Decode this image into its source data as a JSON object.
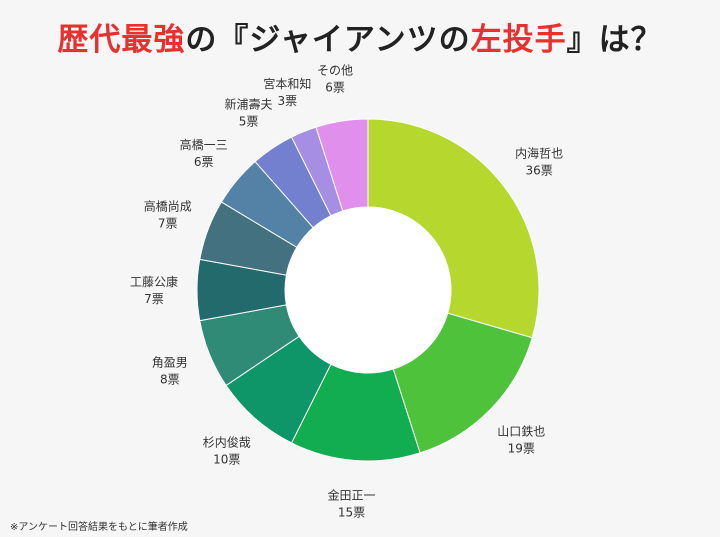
{
  "title": {
    "part1": "歴代最強",
    "part2": "の『ジャイアンツの",
    "part3": "左投手",
    "part4": "』は？"
  },
  "footnote": "※アンケート回答結果をもとに筆者作成",
  "chart_data": {
    "type": "pie",
    "style": "donut",
    "unit": "票",
    "title": "歴代最強の『ジャイアンツの左投手』は？",
    "slices": [
      {
        "label": "内海哲也",
        "value": 36,
        "value_label": "36票",
        "color": "#b6d82e"
      },
      {
        "label": "山口鉄也",
        "value": 19,
        "value_label": "19票",
        "color": "#4dc23a"
      },
      {
        "label": "金田正一",
        "value": 15,
        "value_label": "15票",
        "color": "#12ad50"
      },
      {
        "label": "杉内俊哉",
        "value": 10,
        "value_label": "10票",
        "color": "#0e9568"
      },
      {
        "label": "角盈男",
        "value": 8,
        "value_label": "8票",
        "color": "#2f8a76"
      },
      {
        "label": "工藤公康",
        "value": 7,
        "value_label": "7票",
        "color": "#236a6c"
      },
      {
        "label": "高橋尚成",
        "value": 7,
        "value_label": "7票",
        "color": "#43717f"
      },
      {
        "label": "高橋一三",
        "value": 6,
        "value_label": "6票",
        "color": "#5481a6"
      },
      {
        "label": "新浦壽夫",
        "value": 5,
        "value_label": "5票",
        "color": "#7380cf"
      },
      {
        "label": "宮本和知",
        "value": 3,
        "value_label": "3票",
        "color": "#a58ee3"
      },
      {
        "label": "その他",
        "value": 6,
        "value_label": "6票",
        "color": "#e090ec"
      }
    ]
  }
}
